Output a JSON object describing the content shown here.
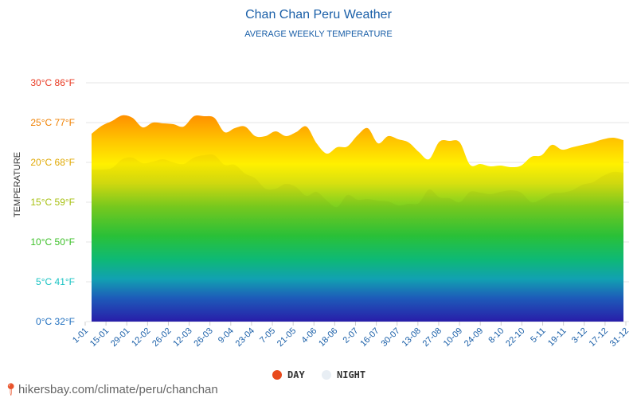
{
  "chart_data": {
    "type": "area",
    "title": "Chan Chan Peru Weather",
    "subtitle": "AVERAGE WEEKLY TEMPERATURE",
    "ylabel": "TEMPERATURE",
    "ylim": [
      0,
      30
    ],
    "y_ticks": [
      {
        "value": 0,
        "label": "0°C 32°F",
        "color": "#1f6fbf"
      },
      {
        "value": 5,
        "label": "5°C 41°F",
        "color": "#19c3c3"
      },
      {
        "value": 10,
        "label": "10°C 50°F",
        "color": "#3cc028"
      },
      {
        "value": 15,
        "label": "15°C 59°F",
        "color": "#a7c010"
      },
      {
        "value": 20,
        "label": "20°C 68°F",
        "color": "#e0a800"
      },
      {
        "value": 25,
        "label": "25°C 77°F",
        "color": "#f08000"
      },
      {
        "value": 30,
        "label": "30°C 86°F",
        "color": "#e83820"
      }
    ],
    "x_labels": [
      "1-01",
      "15-01",
      "29-01",
      "12-02",
      "26-02",
      "12-03",
      "26-03",
      "9-04",
      "23-04",
      "7-05",
      "21-05",
      "4-06",
      "18-06",
      "2-07",
      "16-07",
      "30-07",
      "13-08",
      "27-08",
      "10-09",
      "24-09",
      "8-10",
      "22-10",
      "5-11",
      "19-11",
      "3-12",
      "17-12",
      "31-12"
    ],
    "series": [
      {
        "name": "DAY",
        "color": "#e84a1c",
        "values": [
          23.6,
          24.6,
          25.2,
          25.9,
          25.6,
          24.4,
          25.0,
          24.9,
          24.8,
          24.5,
          25.8,
          25.8,
          25.6,
          23.8,
          24.3,
          24.5,
          23.3,
          23.3,
          23.9,
          23.3,
          23.8,
          24.5,
          22.4,
          21.1,
          21.9,
          22.0,
          23.4,
          24.3,
          22.4,
          23.3,
          22.9,
          22.5,
          21.3,
          20.4,
          22.6,
          22.7,
          22.5,
          19.7,
          19.8,
          19.5,
          19.6,
          19.4,
          19.6,
          20.7,
          20.9,
          22.2,
          21.6,
          21.9,
          22.2,
          22.5,
          22.9,
          23.1,
          22.8
        ]
      },
      {
        "name": "NIGHT",
        "color": "#e8eef4",
        "values": [
          19.1,
          19.1,
          19.3,
          20.4,
          20.6,
          19.9,
          20.1,
          20.4,
          20.0,
          19.8,
          20.6,
          20.9,
          20.9,
          19.7,
          19.7,
          18.6,
          18.0,
          16.7,
          16.7,
          17.3,
          16.9,
          15.8,
          16.3,
          15.2,
          14.4,
          15.9,
          15.3,
          15.4,
          15.2,
          15.1,
          14.6,
          14.8,
          14.9,
          16.6,
          15.6,
          15.5,
          15.0,
          16.3,
          16.2,
          16.0,
          16.3,
          16.5,
          16.2,
          15.0,
          15.4,
          16.1,
          16.2,
          16.5,
          17.2,
          17.5,
          18.3,
          18.8,
          18.7
        ]
      }
    ],
    "grid": true,
    "legend_position": "bottom-center"
  },
  "legend": {
    "day": "DAY",
    "night": "NIGHT"
  },
  "source": {
    "pin_icon": "location-pin-icon",
    "text": "hikersbay.com/climate/peru/chanchan"
  }
}
